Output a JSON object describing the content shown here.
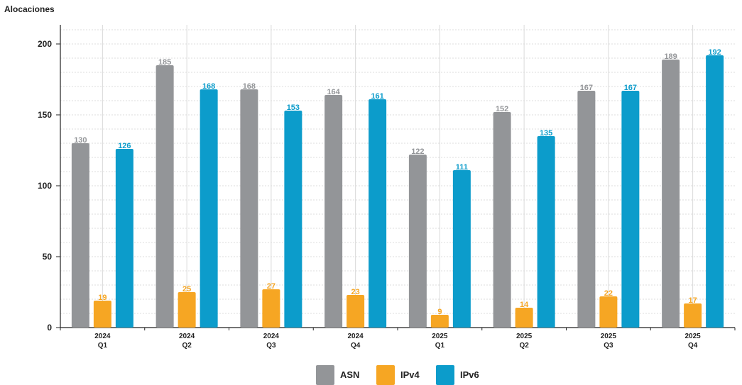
{
  "chart_data": {
    "type": "bar",
    "ylabel": "Alocaciones",
    "ylim": [
      0,
      215
    ],
    "yticks": [
      0,
      50,
      100,
      150,
      200
    ],
    "grid": true,
    "legend_position": "bottom-center",
    "categories": [
      {
        "year": "2024",
        "quarter": "Q1"
      },
      {
        "year": "2024",
        "quarter": "Q2"
      },
      {
        "year": "2024",
        "quarter": "Q3"
      },
      {
        "year": "2024",
        "quarter": "Q4"
      },
      {
        "year": "2025",
        "quarter": "Q1"
      },
      {
        "year": "2025",
        "quarter": "Q2"
      },
      {
        "year": "2025",
        "quarter": "Q3"
      },
      {
        "year": "2025",
        "quarter": "Q4"
      }
    ],
    "series": [
      {
        "name": "ASN",
        "color": "#939598",
        "values": [
          130,
          185,
          168,
          164,
          122,
          152,
          167,
          189
        ]
      },
      {
        "name": "IPv4",
        "color": "#f6a623",
        "values": [
          19,
          25,
          27,
          23,
          9,
          14,
          22,
          17
        ]
      },
      {
        "name": "IPv6",
        "color": "#0c9ccb",
        "values": [
          126,
          168,
          153,
          161,
          111,
          135,
          167,
          192
        ]
      }
    ]
  }
}
